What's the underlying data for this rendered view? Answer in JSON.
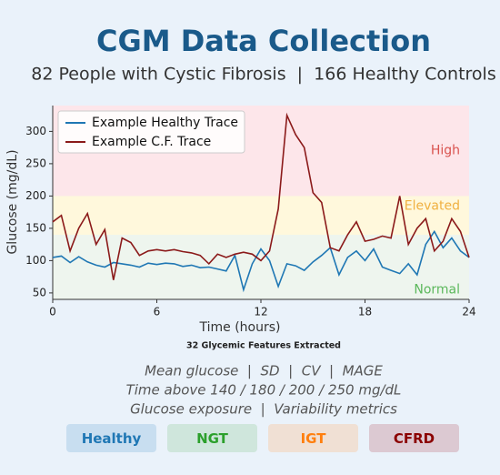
{
  "header": {
    "title": "CGM Data Collection",
    "subtitle": "82 People with Cystic Fibrosis  |  166 Healthy Controls"
  },
  "chart_data": {
    "type": "line",
    "x_label": "Time (hours)",
    "y_label": "Glucose (mg/dL)",
    "xlim": [
      0,
      24
    ],
    "xticks": [
      0,
      6,
      12,
      18,
      24
    ],
    "ylim": [
      40,
      340
    ],
    "yticks": [
      50,
      100,
      150,
      200,
      250,
      300
    ],
    "legend": "upper left",
    "bands": [
      {
        "label": "High",
        "from": 200,
        "to": 340,
        "color": "#fde6ea",
        "label_color": "#d9534f"
      },
      {
        "label": "Elevated",
        "from": 140,
        "to": 200,
        "color": "#fff8dc",
        "label_color": "#f0b040"
      },
      {
        "label": "Normal",
        "from": 40,
        "to": 140,
        "color": "#eef5ee",
        "label_color": "#5cb85c"
      }
    ],
    "x": [
      0,
      0.5,
      1,
      1.5,
      2,
      2.5,
      3,
      3.5,
      4,
      4.5,
      5,
      5.5,
      6,
      6.5,
      7,
      7.5,
      8,
      8.5,
      9,
      9.5,
      10,
      10.5,
      11,
      11.5,
      12,
      12.5,
      13,
      13.5,
      14,
      14.5,
      15,
      15.5,
      16,
      16.5,
      17,
      17.5,
      18,
      18.5,
      19,
      19.5,
      20,
      20.5,
      21,
      21.5,
      22,
      22.5,
      23,
      23.5,
      24
    ],
    "series": [
      {
        "name": "Example Healthy Trace",
        "color": "#1f77b4",
        "values": [
          105,
          107,
          97,
          106,
          98,
          93,
          90,
          97,
          95,
          93,
          90,
          96,
          94,
          96,
          95,
          91,
          93,
          89,
          90,
          87,
          84,
          108,
          55,
          95,
          118,
          100,
          60,
          95,
          92,
          85,
          98,
          108,
          120,
          78,
          105,
          115,
          100,
          118,
          90,
          85,
          80,
          95,
          78,
          125,
          145,
          120,
          135,
          115,
          105
        ]
      },
      {
        "name": "Example C.F. Trace",
        "color": "#8b1a1a",
        "values": [
          160,
          170,
          115,
          150,
          173,
          125,
          148,
          70,
          135,
          128,
          108,
          115,
          117,
          115,
          117,
          114,
          112,
          108,
          95,
          110,
          105,
          110,
          113,
          110,
          100,
          115,
          180,
          325,
          295,
          275,
          205,
          190,
          120,
          115,
          140,
          160,
          130,
          133,
          138,
          135,
          200,
          125,
          150,
          165,
          115,
          130,
          165,
          145,
          105
        ]
      }
    ]
  },
  "features": {
    "heading": "32 Glycemic Features Extracted",
    "lines": [
      "Mean glucose  |  SD  |  CV  |  MAGE",
      "Time above 140 / 180 / 200 / 250 mg/dL",
      "Glucose exposure  |  Variability metrics"
    ]
  },
  "groups": [
    {
      "label": "Healthy",
      "color": "#1f77b4",
      "background": "#c8def0"
    },
    {
      "label": "NGT",
      "color": "#2ca02c",
      "background": "#cfe6dc"
    },
    {
      "label": "IGT",
      "color": "#ff7f0e",
      "background": "#f0e0d4"
    },
    {
      "label": "CFRD",
      "color": "#8b0000",
      "background": "#dcc9d2"
    }
  ]
}
